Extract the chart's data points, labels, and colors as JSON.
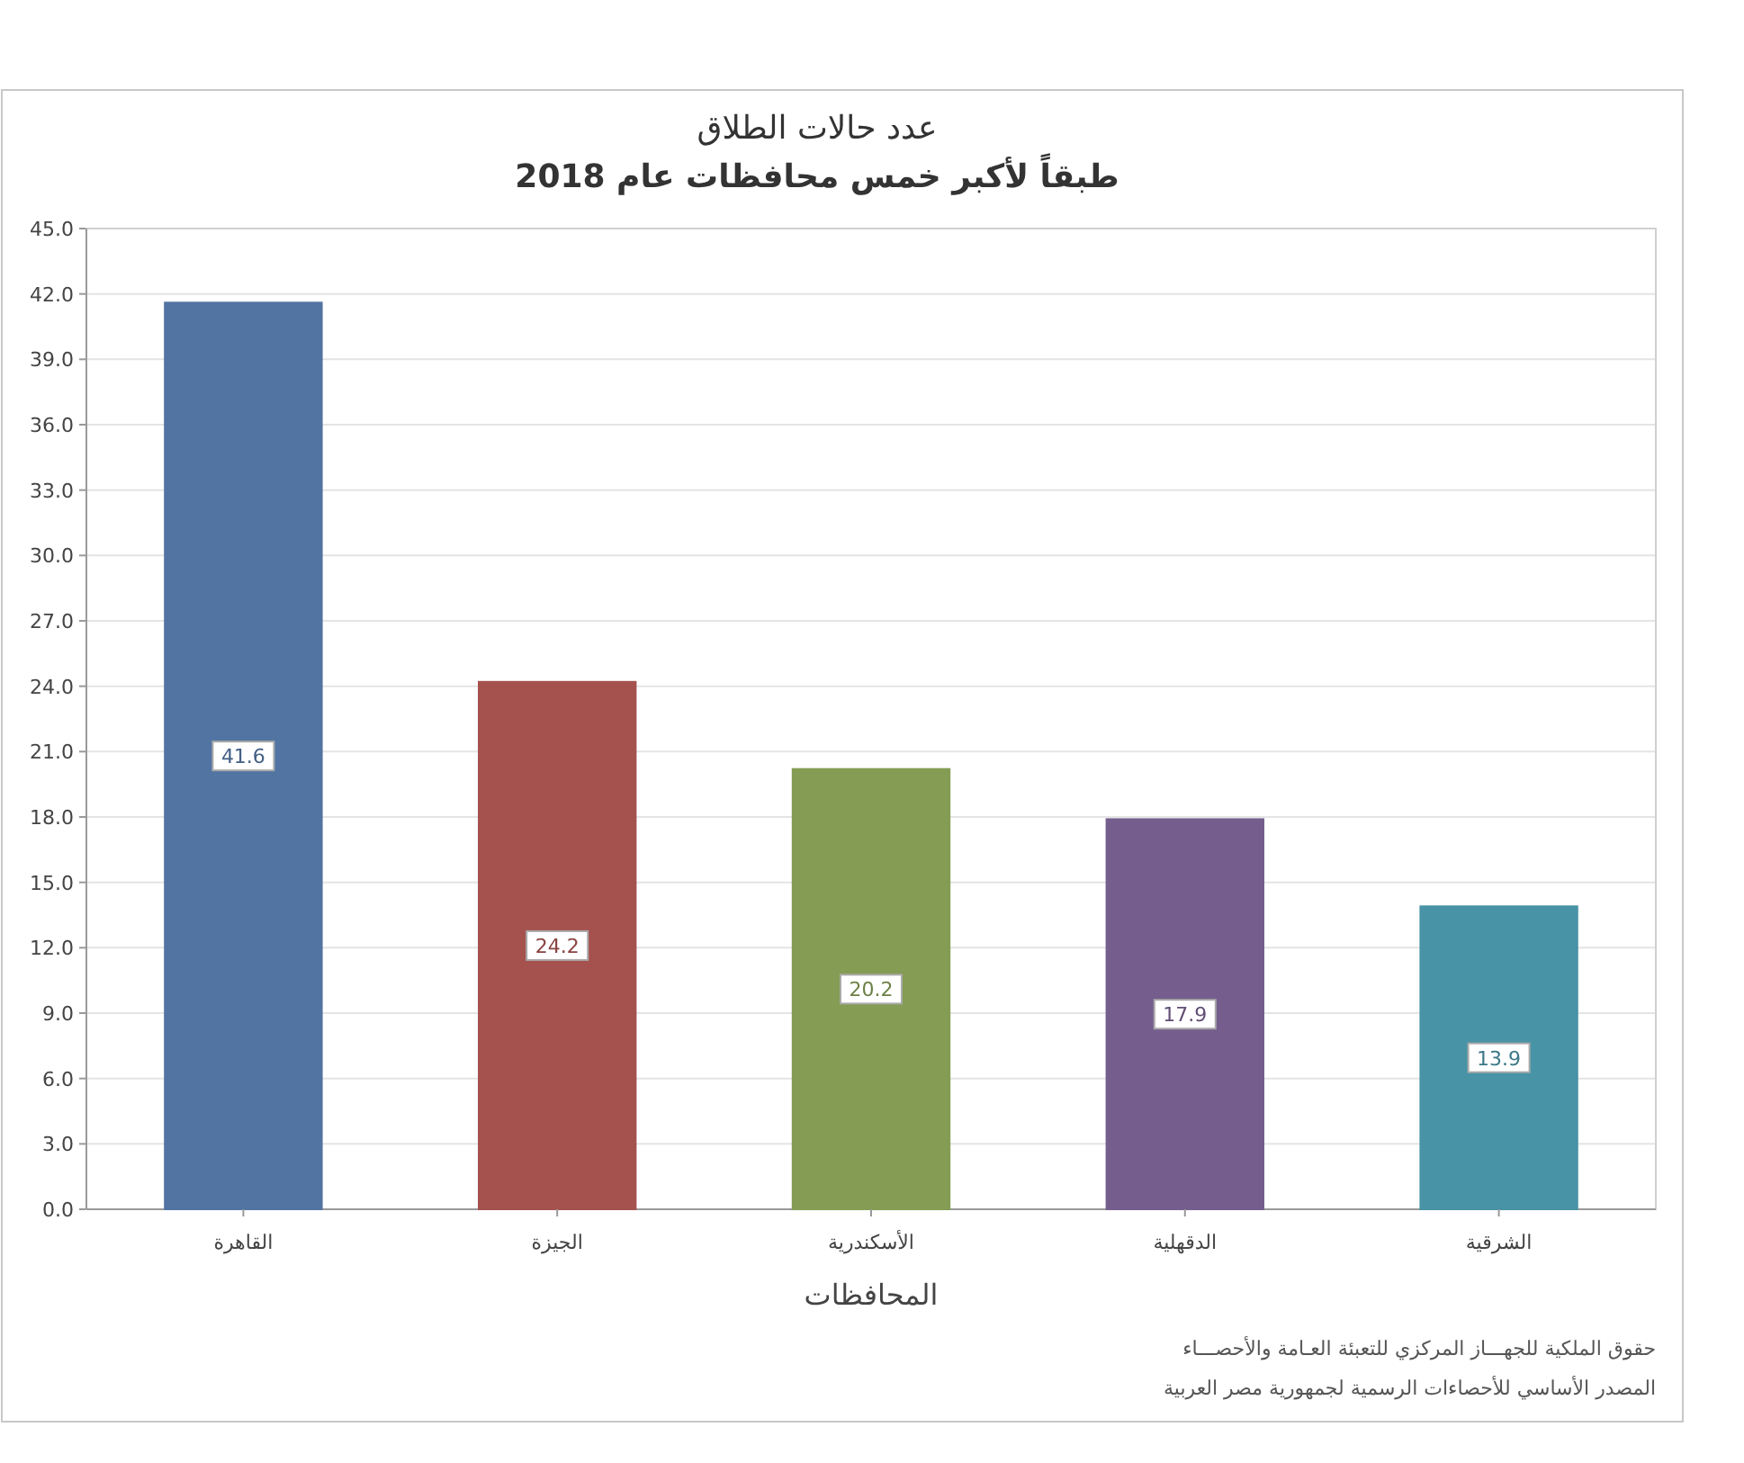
{
  "chart_data": {
    "type": "bar",
    "title": "عدد حالات الطلاق",
    "subtitle": "طبقاً لأكبر خمس محافظات  عام 2018",
    "xlabel": "المحافظات",
    "categories": [
      "القاهرة",
      "الجيزة",
      "الأسكندرية",
      "الدقهلية",
      "الشرقية"
    ],
    "values": [
      41.6,
      24.2,
      20.2,
      17.9,
      13.9
    ],
    "colors": [
      "#5f88be",
      "#c2605d",
      "#9bb862",
      "#8a6fa6",
      "#55adc2"
    ],
    "data_labels": true,
    "grid": "y",
    "ylim": [
      0,
      45
    ],
    "yticks": [
      {
        "value": 0,
        "label": "0.0"
      },
      {
        "value": 3,
        "label": "3.0"
      },
      {
        "value": 6,
        "label": "6.0"
      },
      {
        "value": 9,
        "label": "9.0"
      },
      {
        "value": 12,
        "label": "12.0"
      },
      {
        "value": 15,
        "label": "15.0"
      },
      {
        "value": 18,
        "label": "18.0"
      },
      {
        "value": 21,
        "label": "21.0"
      },
      {
        "value": 24,
        "label": "24.0"
      },
      {
        "value": 27,
        "label": "27.0"
      },
      {
        "value": 30,
        "label": "30.0"
      },
      {
        "value": 33,
        "label": "33.0"
      },
      {
        "value": 36,
        "label": "36.0"
      },
      {
        "value": 39,
        "label": "39.0"
      },
      {
        "value": 42,
        "label": "42.0"
      },
      {
        "value": 45,
        "label": "45.0"
      }
    ],
    "annotations": [
      "حقوق الملكية للجهـــاز المركزي للتعبئة العـامة والأحصـــاء",
      "المصدر الأساسي للأحصاءات الرسمية لجمهورية مصر العربية"
    ]
  }
}
